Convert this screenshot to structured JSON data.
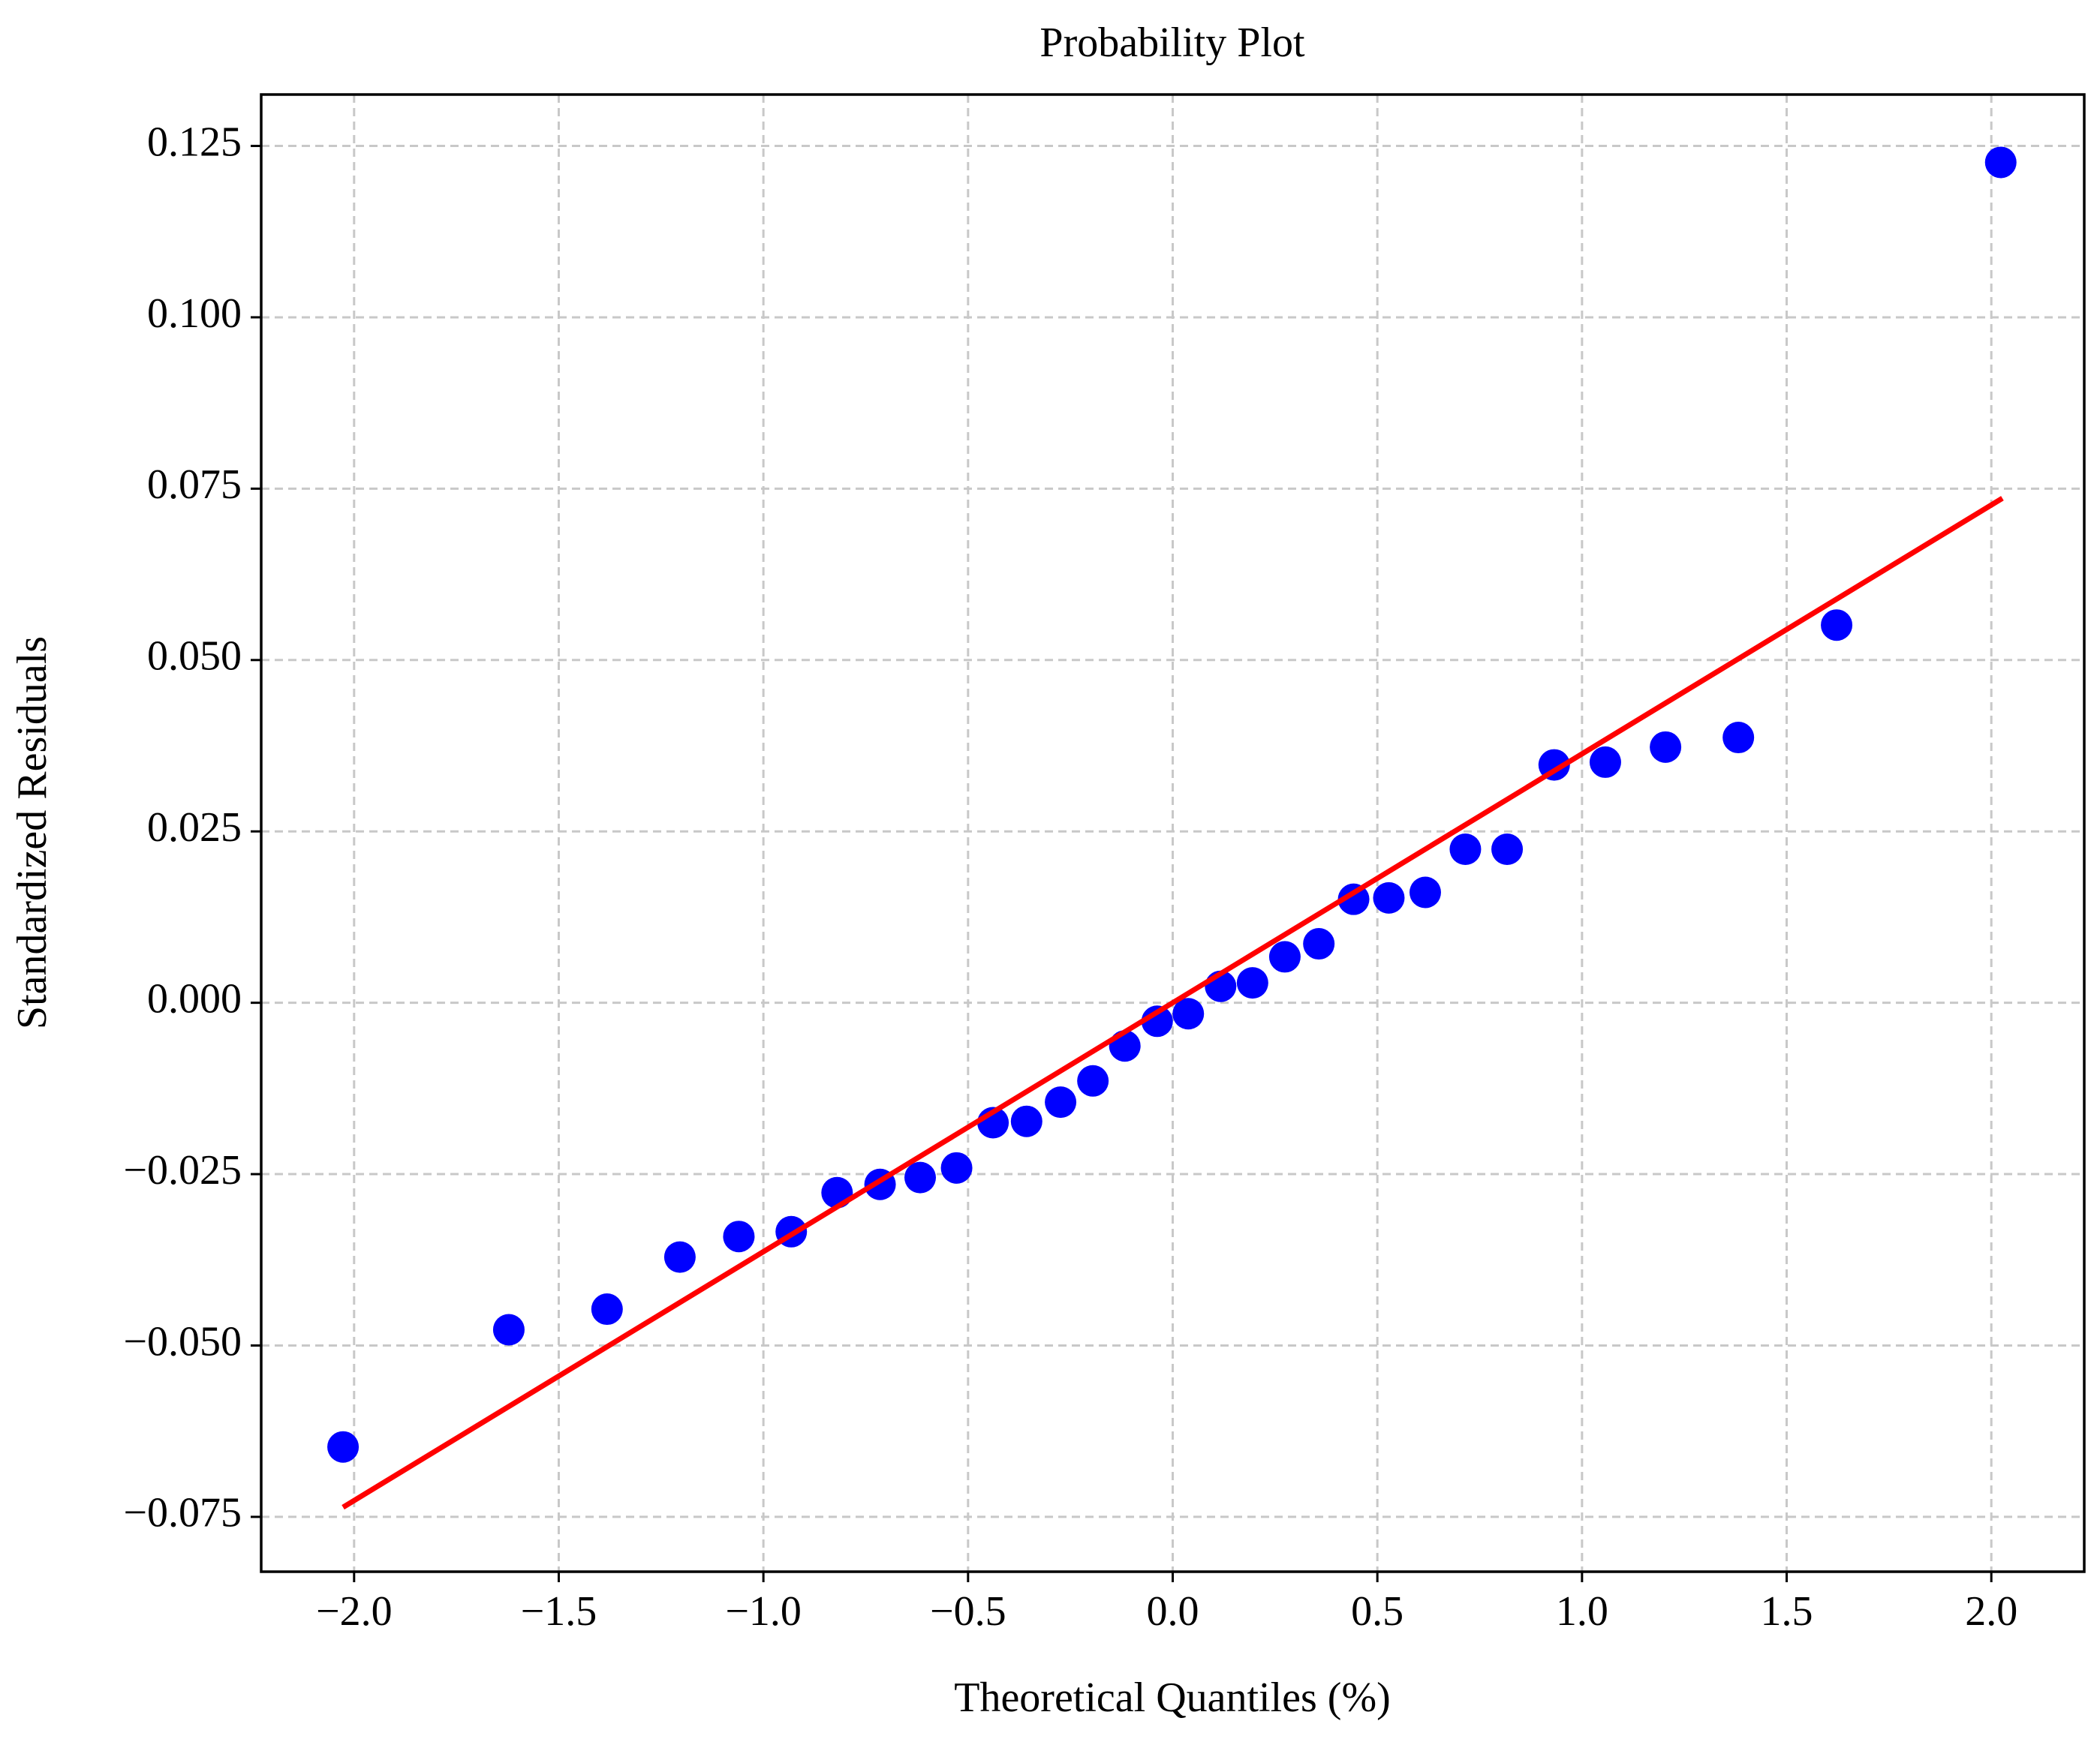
{
  "chart_data": {
    "type": "scatter",
    "title": "Probability Plot",
    "x_label": "Theoretical Quantiles (%)",
    "y_label": "Standardized Residuals",
    "xlim": [
      -2.227,
      2.227
    ],
    "ylim": [
      -0.083,
      0.1325
    ],
    "xticks": [
      {
        "value": -2.0,
        "label": "−2.0"
      },
      {
        "value": -1.5,
        "label": "−1.5"
      },
      {
        "value": -1.0,
        "label": "−1.0"
      },
      {
        "value": -0.5,
        "label": "−0.5"
      },
      {
        "value": 0.0,
        "label": "0.0"
      },
      0.5,
      {
        "value": 1.0,
        "label": "1.0"
      },
      1.5,
      {
        "value": 2.0,
        "label": "2.0"
      }
    ],
    "yticks": [
      {
        "value": -0.075,
        "label": "−0.075"
      },
      {
        "value": -0.05,
        "label": "−0.050"
      },
      {
        "value": -0.025,
        "label": "−0.025"
      },
      {
        "value": 0.0,
        "label": "0.000"
      },
      0.025,
      {
        "value": 0.05,
        "label": "0.050"
      },
      0.075,
      {
        "value": 0.1,
        "label": "0.100"
      },
      0.125
    ],
    "grid": true,
    "series": [
      {
        "type": "scatter",
        "color": "#0000ff",
        "x": [
          -2.027,
          -1.622,
          -1.382,
          -1.204,
          -1.06,
          -0.932,
          -0.82,
          -0.715,
          -0.617,
          -0.528,
          -0.439,
          -0.357,
          -0.274,
          -0.195,
          -0.117,
          -0.038,
          0.038,
          0.117,
          0.195,
          0.274,
          0.357,
          0.442,
          0.528,
          0.617,
          0.715,
          0.817,
          0.932,
          1.057,
          1.204,
          1.382,
          1.622,
          2.023
        ],
        "values": [
          -0.0648,
          -0.0477,
          -0.0447,
          -0.0371,
          -0.0341,
          -0.0334,
          -0.0277,
          -0.0265,
          -0.0255,
          -0.0241,
          -0.0175,
          -0.0173,
          -0.0145,
          -0.0114,
          -0.0063,
          -0.0027,
          -0.0016,
          0.0024,
          0.0029,
          0.0067,
          0.0086,
          0.0151,
          0.0153,
          0.0161,
          0.0224,
          0.0224,
          0.0347,
          0.0351,
          0.0373,
          0.0387,
          0.0551,
          0.1226
        ]
      },
      {
        "type": "line",
        "color": "#ff0000",
        "x": [
          -2.027,
          2.027
        ],
        "values": [
          -0.0736,
          0.0736
        ]
      }
    ]
  }
}
